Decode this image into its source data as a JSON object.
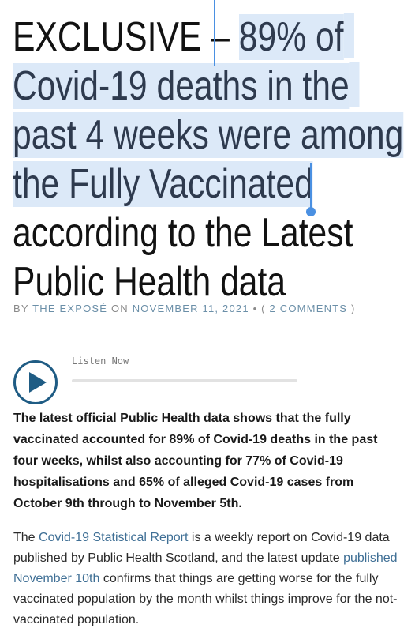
{
  "headline": {
    "prefix": "EXCLUSIVE – ",
    "selected_1": "89% of",
    "selected_2": "Covid-19 deaths in the",
    "selected_3": "past 4 weeks were among",
    "selected_4": "the Fully Vaccinated",
    "line_5": "according to the Latest",
    "line_6": "Public Health data"
  },
  "byline": {
    "by": "BY",
    "author": "THE EXPOSÉ",
    "on": "ON",
    "date": "NOVEMBER 11, 2021",
    "separator": "•",
    "comments_open": "(",
    "comments": "2 COMMENTS",
    "comments_close": ")"
  },
  "player": {
    "label": "Listen Now",
    "icon": "play-icon",
    "progress": 0
  },
  "lead": "The latest official Public Health data shows that the fully vaccinated accounted for 89% of Covid-19 deaths in the past four weeks, whilst also accounting for 77% of Covid-19 hospitalisations and 65% of alleged Covid-19 cases from October 9th through to November 5th.",
  "body": {
    "t1": "The ",
    "link1": "Covid-19 Statistical Report",
    "t2": " is a weekly report on Covid-19 data published by Public Health Scotland, and the latest update ",
    "link2": "published November 10th",
    "t3": " confirms that things are getting worse for the fully vaccinated population by the month whilst things improve for the not-vaccinated population."
  },
  "colors": {
    "selection": "#dce9f8",
    "selection_handle": "#4a90e2",
    "link": "#3f6f95",
    "play_button": "#1f5c84"
  }
}
